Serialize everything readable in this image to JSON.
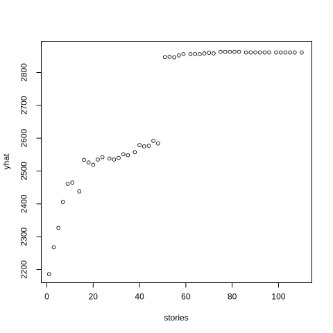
{
  "chart_data": {
    "type": "scatter",
    "title": "",
    "xlabel": "stories",
    "ylabel": "yhat",
    "xlim": [
      -2.4,
      114.4
    ],
    "ylim": [
      2160,
      2895
    ],
    "xticks": [
      0,
      20,
      40,
      60,
      80,
      100
    ],
    "yticks": [
      2200,
      2300,
      2400,
      2500,
      2600,
      2700,
      2800
    ],
    "grid": false,
    "legend": "none",
    "marker": "open-circle",
    "points": [
      [
        1,
        2186
      ],
      [
        3,
        2268
      ],
      [
        5,
        2327
      ],
      [
        7,
        2406
      ],
      [
        9,
        2461
      ],
      [
        11,
        2465
      ],
      [
        14,
        2438
      ],
      [
        16,
        2534
      ],
      [
        18,
        2526
      ],
      [
        20,
        2519
      ],
      [
        22,
        2535
      ],
      [
        24,
        2542
      ],
      [
        27,
        2538
      ],
      [
        29,
        2535
      ],
      [
        31,
        2540
      ],
      [
        33,
        2551
      ],
      [
        35,
        2548
      ],
      [
        38,
        2557
      ],
      [
        40,
        2579
      ],
      [
        42,
        2575
      ],
      [
        44,
        2577
      ],
      [
        46,
        2592
      ],
      [
        48,
        2584
      ],
      [
        51,
        2847
      ],
      [
        53,
        2848
      ],
      [
        55,
        2846
      ],
      [
        57,
        2852
      ],
      [
        59,
        2856
      ],
      [
        62,
        2856
      ],
      [
        64,
        2856
      ],
      [
        66,
        2856
      ],
      [
        68,
        2858
      ],
      [
        70,
        2860
      ],
      [
        72,
        2858
      ],
      [
        75,
        2863
      ],
      [
        77,
        2863
      ],
      [
        79,
        2863
      ],
      [
        81,
        2863
      ],
      [
        83,
        2863
      ],
      [
        86,
        2861
      ],
      [
        88,
        2861
      ],
      [
        90,
        2861
      ],
      [
        92,
        2861
      ],
      [
        94,
        2861
      ],
      [
        96,
        2861
      ],
      [
        99,
        2861
      ],
      [
        101,
        2861
      ],
      [
        103,
        2861
      ],
      [
        105,
        2861
      ],
      [
        107,
        2861
      ],
      [
        110,
        2861
      ]
    ]
  }
}
